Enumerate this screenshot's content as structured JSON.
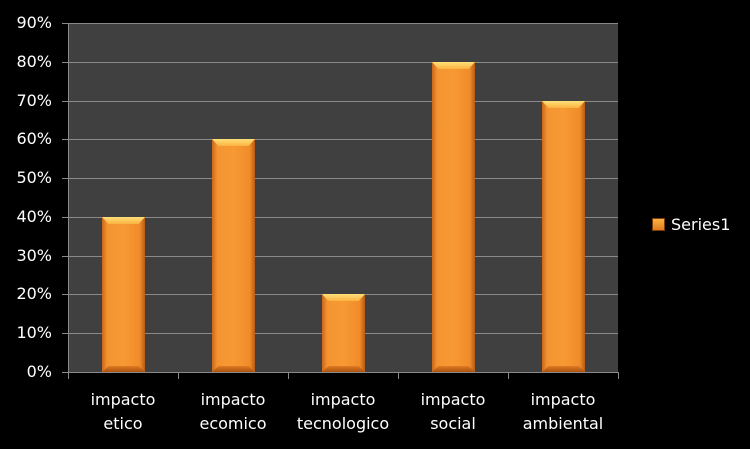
{
  "chart_data": {
    "type": "bar",
    "title": "",
    "xlabel": "",
    "ylabel": "",
    "categories": [
      "impacto etico",
      "impacto ecomico",
      "impacto tecnologico",
      "impacto social",
      "impacto ambiental"
    ],
    "category_lines": [
      [
        "impacto",
        "etico"
      ],
      [
        "impacto",
        "ecomico"
      ],
      [
        "impacto",
        "tecnologico"
      ],
      [
        "impacto",
        "social"
      ],
      [
        "impacto",
        "ambiental"
      ]
    ],
    "series": [
      {
        "name": "Series1",
        "values": [
          0.4,
          0.6,
          0.2,
          0.8,
          0.7
        ],
        "color": "#F79A33"
      }
    ],
    "ylim": [
      0,
      0.9
    ],
    "yticks": [
      "0%",
      "10%",
      "20%",
      "30%",
      "40%",
      "50%",
      "60%",
      "70%",
      "80%",
      "90%"
    ],
    "grid": true,
    "legend_position": "right",
    "background": "#000000",
    "plot_background": "#404040"
  }
}
